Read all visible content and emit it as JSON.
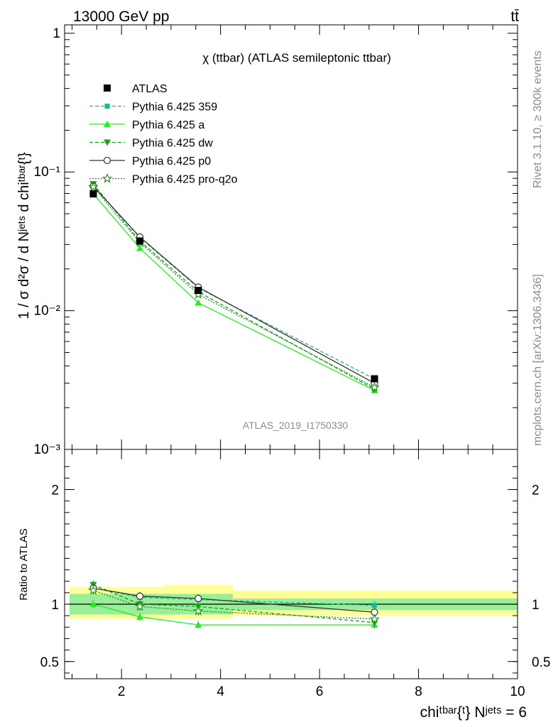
{
  "header": {
    "left": "13000 GeV pp",
    "right": "tt̄"
  },
  "side_labels": {
    "rivet": "Rivet 3.1.10, ≥ 300k events",
    "mcplots": "mcplots.cern.ch [arXiv:1306.3436]"
  },
  "chart_data": [
    {
      "type": "line",
      "title": "χ (ttbar) (ATLAS semileptonic ttbar)",
      "ylabel": "1 / σ d²σ / d Nʲᵉᵗˢ d chiᵗᵇᵃʳ{ᵗ}",
      "y_scale": "log",
      "xlim": [
        0.85,
        10.0
      ],
      "ylim": [
        0.001,
        1.15
      ],
      "y_ticks": [
        "10⁻³",
        "10⁻²",
        "10⁻¹",
        "1"
      ],
      "watermark": "ATLAS_2019_I1750330",
      "legend_position": "top-left",
      "x": [
        1.43,
        2.37,
        3.55,
        7.11
      ],
      "bins": [
        [
          0.95,
          1.9
        ],
        [
          1.9,
          2.85
        ],
        [
          2.85,
          4.25
        ],
        [
          4.25,
          10.0
        ]
      ],
      "series": [
        {
          "name": "ATLAS",
          "color": "#000000",
          "style": "data",
          "marker": "square",
          "values": [
            0.0695,
            0.0318,
            0.014,
            0.00323
          ]
        },
        {
          "name": "Pythia 6.425 359",
          "color": "#1fb88a",
          "style": "dashed",
          "marker": "small-square",
          "values": [
            0.079,
            0.0337,
            0.0146,
            0.00322
          ]
        },
        {
          "name": "Pythia 6.425 a",
          "color": "#22ee22",
          "style": "solid",
          "marker": "triangle-up",
          "values": [
            0.0695,
            0.0282,
            0.0114,
            0.00266
          ]
        },
        {
          "name": "Pythia 6.425 dw",
          "color": "#1aa01a",
          "style": "dashed",
          "marker": "triangle-down",
          "values": [
            0.082,
            0.0318,
            0.0137,
            0.00272
          ]
        },
        {
          "name": "Pythia 6.425 p0",
          "color": "#333333",
          "style": "solid",
          "marker": "open-circle",
          "values": [
            0.079,
            0.034,
            0.0148,
            0.003
          ]
        },
        {
          "name": "Pythia 6.425 pro-q2o",
          "color": "#1a8c1a",
          "style": "dotted",
          "marker": "open-star",
          "values": [
            0.078,
            0.031,
            0.0131,
            0.0028
          ]
        }
      ]
    },
    {
      "type": "line",
      "ylabel": "Ratio to ATLAS",
      "xlabel": "chiᵗᵇᵃʳ{ᵗ} Nʲᵉᵗˢ = 6",
      "xlim": [
        0.85,
        10.0
      ],
      "ylim": [
        0.35,
        2.35
      ],
      "x_ticks": [
        "2",
        "4",
        "6",
        "8",
        "10"
      ],
      "y_ticks": [
        "0.5",
        "1",
        "2"
      ],
      "x": [
        1.43,
        2.37,
        3.55,
        7.11
      ],
      "bands": {
        "inner": [
          [
            0.91,
            1.09
          ],
          [
            0.91,
            1.09
          ],
          [
            0.91,
            1.09
          ],
          [
            0.95,
            1.05
          ]
        ],
        "outer": [
          [
            0.87,
            1.15
          ],
          [
            0.87,
            1.15
          ],
          [
            0.87,
            1.17
          ],
          [
            0.9,
            1.12
          ]
        ]
      },
      "series": [
        {
          "name": "Pythia 6.425 359",
          "values": [
            1.14,
            1.06,
            1.04,
            0.99
          ]
        },
        {
          "name": "Pythia 6.425 a",
          "values": [
            1.0,
            0.89,
            0.82,
            0.82
          ]
        },
        {
          "name": "Pythia 6.425 dw",
          "values": [
            1.17,
            1.0,
            0.98,
            0.84
          ]
        },
        {
          "name": "Pythia 6.425 p0",
          "values": [
            1.14,
            1.07,
            1.05,
            0.93
          ]
        },
        {
          "name": "Pythia 6.425 pro-q2o",
          "values": [
            1.12,
            0.98,
            0.94,
            0.87
          ]
        }
      ]
    }
  ]
}
